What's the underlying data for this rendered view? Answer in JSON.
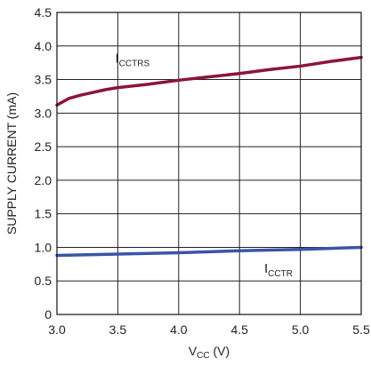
{
  "chart_data": {
    "type": "line",
    "xlabel": {
      "main": "V",
      "sub": "CC",
      "unit": " (V)"
    },
    "ylabel": "SUPPLY CURRENT (mA)",
    "xlim": [
      3.0,
      5.5
    ],
    "ylim": [
      0,
      4.5
    ],
    "x_ticks": [
      3.0,
      3.5,
      4.0,
      4.5,
      5.0,
      5.5
    ],
    "y_ticks": [
      0,
      0.5,
      1.0,
      1.5,
      2.0,
      2.5,
      3.0,
      3.5,
      4.0,
      4.5
    ],
    "x_tick_labels": [
      "3.0",
      "3.5",
      "4.0",
      "4.5",
      "5.0",
      "5.5"
    ],
    "y_tick_labels": [
      "0",
      "0.5",
      "1.0",
      "1.5",
      "2.0",
      "2.5",
      "3.0",
      "3.5",
      "4.0",
      "4.5"
    ],
    "grid": true,
    "series": [
      {
        "name": "ICCTRS",
        "label_main": "I",
        "label_sub": "CCTRS",
        "color": "#8b1538",
        "x": [
          3.0,
          3.1,
          3.2,
          3.3,
          3.4,
          3.5,
          3.75,
          4.0,
          4.25,
          4.5,
          4.75,
          5.0,
          5.25,
          5.5
        ],
        "y": [
          3.12,
          3.22,
          3.27,
          3.31,
          3.35,
          3.38,
          3.43,
          3.49,
          3.54,
          3.59,
          3.65,
          3.7,
          3.77,
          3.83
        ],
        "label_at": [
          3.62,
          3.75
        ]
      },
      {
        "name": "ICCTR",
        "label_main": "I",
        "label_sub": "CCTR",
        "color": "#3a55a8",
        "x": [
          3.0,
          3.5,
          4.0,
          4.5,
          5.0,
          5.5
        ],
        "y": [
          0.88,
          0.9,
          0.92,
          0.95,
          0.97,
          1.0
        ],
        "label_at": [
          4.82,
          0.62
        ]
      }
    ]
  }
}
